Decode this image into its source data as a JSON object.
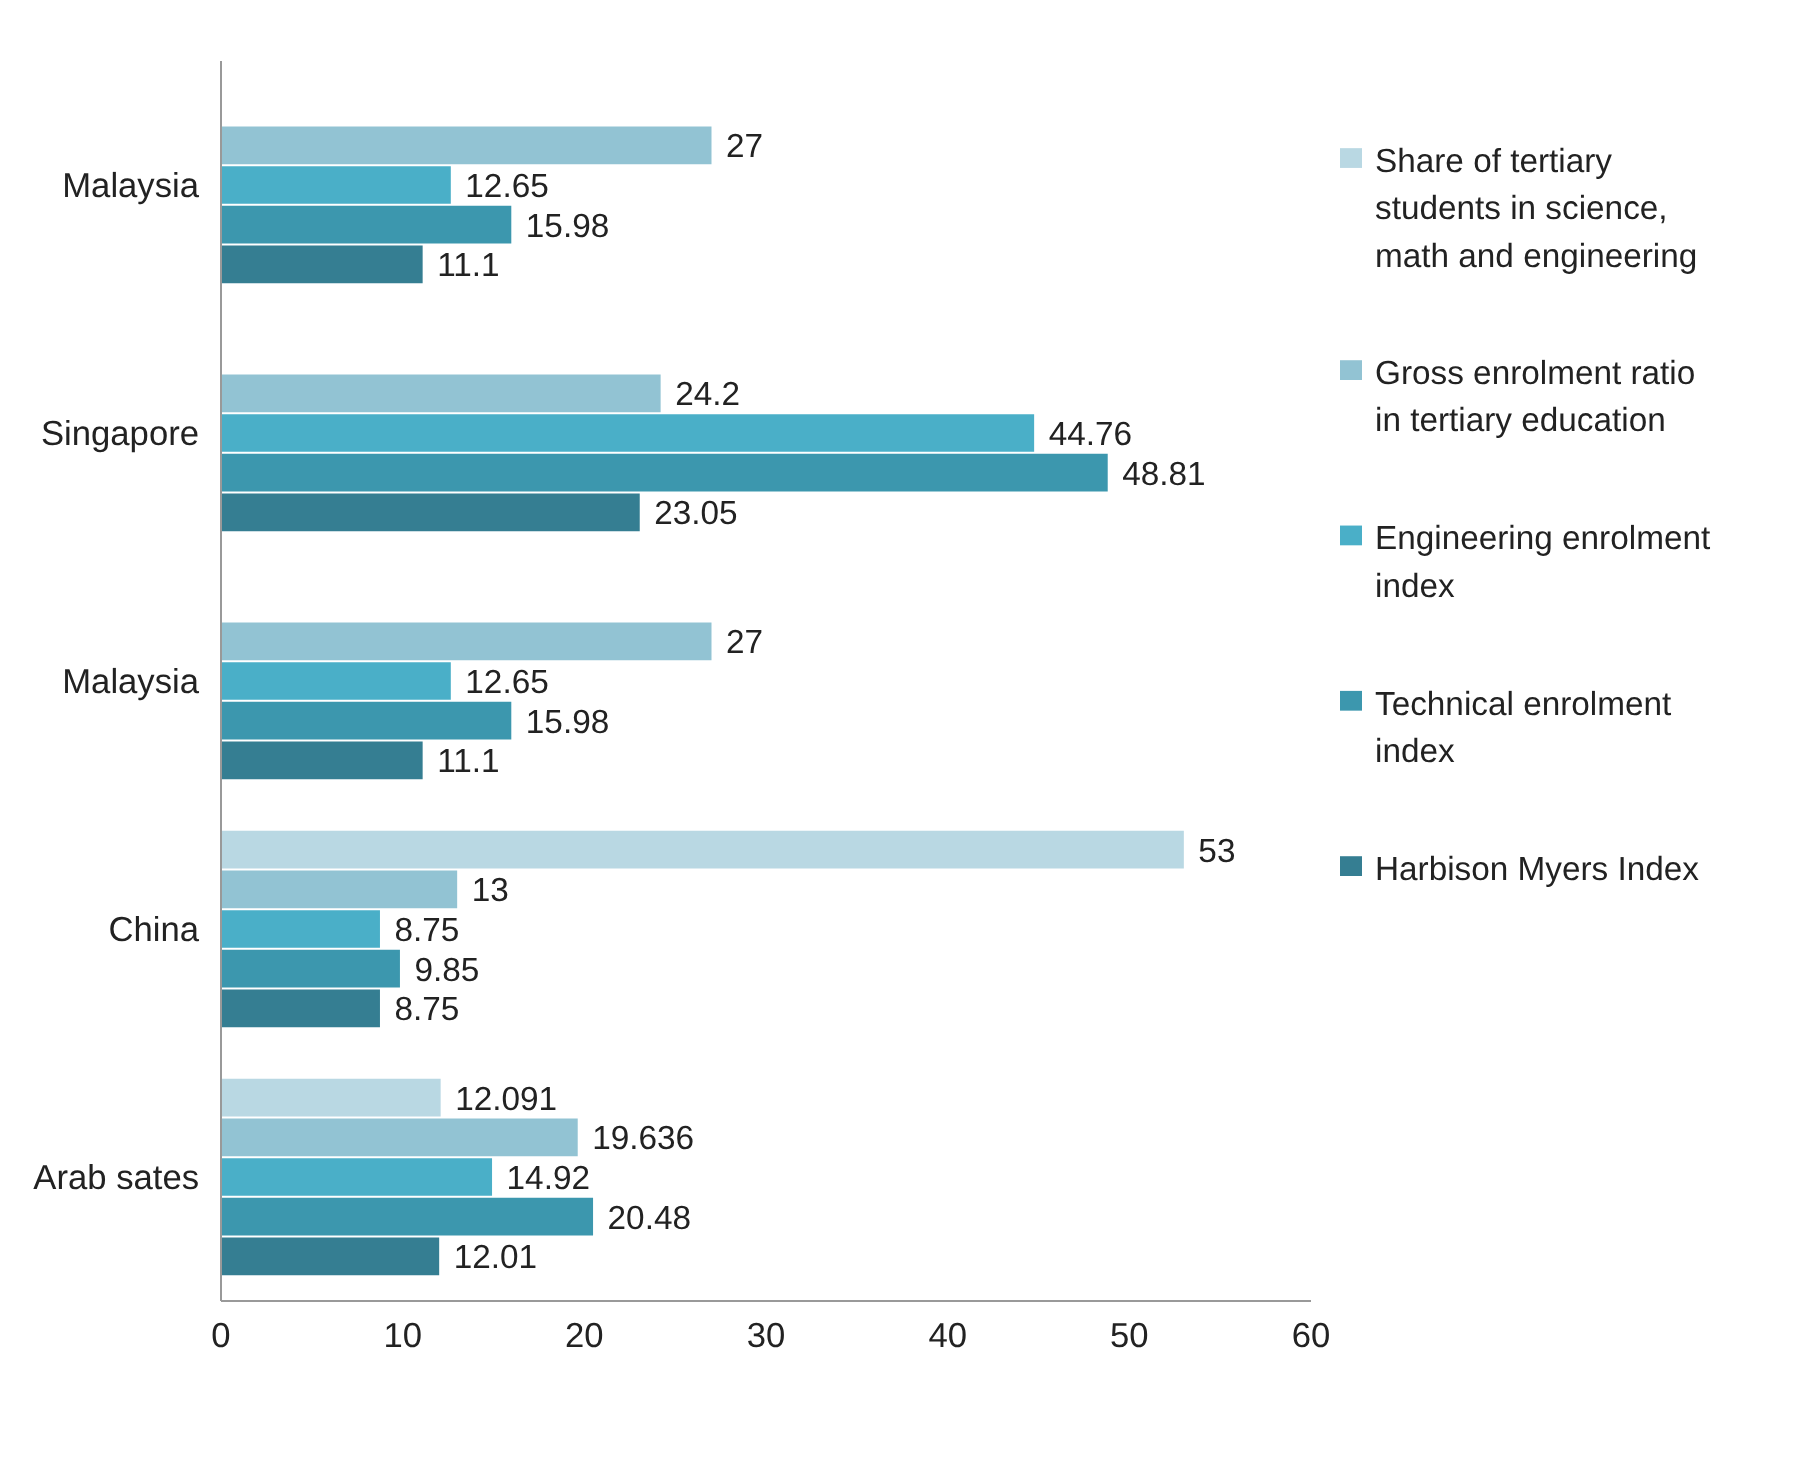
{
  "chart_data": {
    "type": "bar",
    "orientation": "horizontal",
    "categories": [
      "Malaysia",
      "Singapore",
      "Malaysia",
      "China",
      "Arab sates"
    ],
    "series": [
      {
        "name": "Share of tertiary students in science, math and engineering",
        "color": "#b9d8e3",
        "values": [
          null,
          null,
          null,
          53,
          12.091
        ]
      },
      {
        "name": "Gross enrolment ratio in tertiary education",
        "color": "#92c3d3",
        "values": [
          27,
          24.2,
          27,
          13,
          19.636
        ]
      },
      {
        "name": "Engineering enrolment index",
        "color": "#4aafc8",
        "values": [
          12.65,
          44.76,
          12.65,
          8.75,
          14.92
        ]
      },
      {
        "name": "Technical enrolment index",
        "color": "#3c97ae",
        "values": [
          15.98,
          48.81,
          15.98,
          9.85,
          20.48
        ]
      },
      {
        "name": "Harbison Myers Index",
        "color": "#357e92",
        "values": [
          11.1,
          23.05,
          11.1,
          8.75,
          12.01
        ]
      }
    ],
    "xlim": [
      0,
      60
    ],
    "xticks": [
      0,
      10,
      20,
      30,
      40,
      50,
      60
    ],
    "data_labels": true,
    "grid": false,
    "legend": "right"
  }
}
